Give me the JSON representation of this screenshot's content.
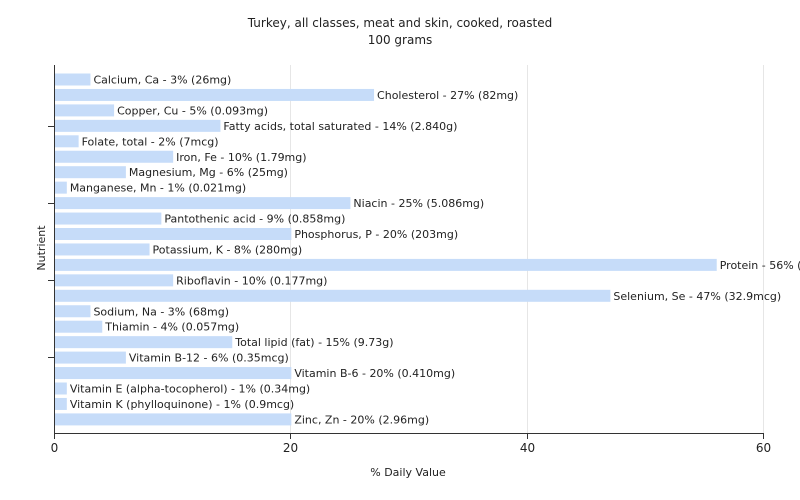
{
  "chart_data": {
    "type": "bar",
    "orientation": "horizontal",
    "title": "Turkey, all classes, meat and skin, cooked, roasted",
    "subtitle": "100 grams",
    "xlabel": "% Daily Value",
    "ylabel": "Nutrient",
    "xlim": [
      0,
      60
    ],
    "xticks": [
      0,
      20,
      40,
      60
    ],
    "grid": true,
    "bar_color": "#c6dcf9",
    "categories": [
      "Calcium, Ca",
      "Cholesterol",
      "Copper, Cu",
      "Fatty acids, total saturated",
      "Folate, total",
      "Iron, Fe",
      "Magnesium, Mg",
      "Manganese, Mn",
      "Niacin",
      "Pantothenic acid",
      "Phosphorus, P",
      "Potassium, K",
      "Protein",
      "Riboflavin",
      "Selenium, Se",
      "Sodium, Na",
      "Thiamin",
      "Total lipid (fat)",
      "Vitamin B-12",
      "Vitamin B-6",
      "Vitamin E (alpha-tocopherol)",
      "Vitamin K (phylloquinone)",
      "Zinc, Zn"
    ],
    "values": [
      3,
      27,
      5,
      14,
      2,
      10,
      6,
      1,
      25,
      9,
      20,
      8,
      56,
      10,
      47,
      3,
      4,
      15,
      6,
      20,
      1,
      1,
      20
    ],
    "labels": [
      "Calcium, Ca - 3% (26mg)",
      "Cholesterol - 27% (82mg)",
      "Copper, Cu - 5% (0.093mg)",
      "Fatty acids, total saturated - 14% (2.840g)",
      "Folate, total - 2% (7mcg)",
      "Iron, Fe - 10% (1.79mg)",
      "Magnesium, Mg - 6% (25mg)",
      "Manganese, Mn - 1% (0.021mg)",
      "Niacin - 25% (5.086mg)",
      "Pantothenic acid - 9% (0.858mg)",
      "Phosphorus, P - 20% (203mg)",
      "Potassium, K - 8% (280mg)",
      "Protein - 56% (28.10g)",
      "Riboflavin - 10% (0.177mg)",
      "Selenium, Se - 47% (32.9mcg)",
      "Sodium, Na - 3% (68mg)",
      "Thiamin - 4% (0.057mg)",
      "Total lipid (fat) - 15% (9.73g)",
      "Vitamin B-12 - 6% (0.35mcg)",
      "Vitamin B-6 - 20% (0.410mg)",
      "Vitamin E (alpha-tocopherol) - 1% (0.34mg)",
      "Vitamin K (phylloquinone) - 1% (0.9mcg)",
      "Zinc, Zn - 20% (2.96mg)"
    ]
  }
}
